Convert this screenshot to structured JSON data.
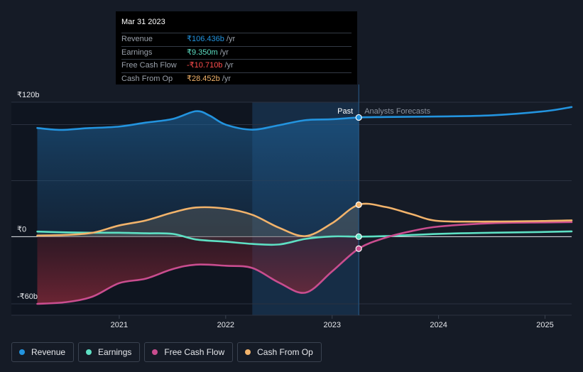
{
  "tooltip": {
    "date": "Mar 31 2023",
    "rows": [
      {
        "label": "Revenue",
        "value": "₹106.436b",
        "unit": "/yr",
        "color": "#2394df"
      },
      {
        "label": "Earnings",
        "value": "₹9.350m",
        "unit": "/yr",
        "color": "#5ee0c4"
      },
      {
        "label": "Free Cash Flow",
        "value": "-₹10.710b",
        "unit": "/yr",
        "color": "#ff4d4d"
      },
      {
        "label": "Cash From Op",
        "value": "₹28.452b",
        "unit": "/yr",
        "color": "#f2b36b"
      }
    ]
  },
  "chart_data": {
    "type": "line",
    "y_unit": "₹b",
    "ylim": [
      -60,
      120
    ],
    "y_tick_labels": [
      {
        "value": 120,
        "label": "₹120b"
      },
      {
        "value": 0,
        "label": "₹0"
      },
      {
        "value": -60,
        "label": "-₹60b"
      }
    ],
    "x_tick_labels": [
      {
        "value": 2021,
        "label": "2021"
      },
      {
        "value": 2022,
        "label": "2022"
      },
      {
        "value": 2023,
        "label": "2023"
      },
      {
        "value": 2024,
        "label": "2024"
      },
      {
        "value": 2025,
        "label": "2025"
      }
    ],
    "xlim": [
      2020.2,
      2025.25
    ],
    "past_label": "Past",
    "forecast_label": "Analysts Forecasts",
    "highlight_start": 2022.25,
    "divider_x": 2023.25,
    "series": [
      {
        "name": "Revenue",
        "color": "#2394df",
        "points": [
          [
            2020.23,
            97
          ],
          [
            2020.45,
            95.3
          ],
          [
            2020.7,
            96.8
          ],
          [
            2021.0,
            98.3
          ],
          [
            2021.25,
            101.8
          ],
          [
            2021.5,
            105
          ],
          [
            2021.72,
            112
          ],
          [
            2021.85,
            108
          ],
          [
            2022.0,
            100
          ],
          [
            2022.25,
            95.5
          ],
          [
            2022.5,
            99.5
          ],
          [
            2022.75,
            104
          ],
          [
            2023.0,
            104.8
          ],
          [
            2023.25,
            106.4
          ],
          [
            2023.5,
            106.8
          ],
          [
            2024.0,
            107.3
          ],
          [
            2024.5,
            108.3
          ],
          [
            2025.0,
            112
          ],
          [
            2025.25,
            115.7
          ]
        ]
      },
      {
        "name": "Earnings",
        "color": "#5ee0c4",
        "points": [
          [
            2020.23,
            4.5
          ],
          [
            2020.5,
            3.8
          ],
          [
            2020.75,
            3.5
          ],
          [
            2021.0,
            3.5
          ],
          [
            2021.25,
            3
          ],
          [
            2021.5,
            2.5
          ],
          [
            2021.72,
            -2.5
          ],
          [
            2022.0,
            -4.5
          ],
          [
            2022.25,
            -6.5
          ],
          [
            2022.5,
            -7
          ],
          [
            2022.75,
            -2
          ],
          [
            2023.0,
            0.2
          ],
          [
            2023.25,
            0.01
          ],
          [
            2023.5,
            0.5
          ],
          [
            2024.0,
            2.5
          ],
          [
            2024.5,
            3.5
          ],
          [
            2025.0,
            4.2
          ],
          [
            2025.25,
            4.7
          ]
        ]
      },
      {
        "name": "Free Cash Flow",
        "color": "#c94d8f",
        "points": [
          [
            2020.23,
            -60
          ],
          [
            2020.5,
            -58.5
          ],
          [
            2020.75,
            -53.5
          ],
          [
            2021.0,
            -41.5
          ],
          [
            2021.25,
            -37.5
          ],
          [
            2021.5,
            -29
          ],
          [
            2021.72,
            -25
          ],
          [
            2022.0,
            -26
          ],
          [
            2022.25,
            -28
          ],
          [
            2022.5,
            -41
          ],
          [
            2022.75,
            -50
          ],
          [
            2023.0,
            -31
          ],
          [
            2023.25,
            -10.7
          ],
          [
            2023.5,
            -1
          ],
          [
            2023.75,
            5
          ],
          [
            2024.0,
            9
          ],
          [
            2024.5,
            12
          ],
          [
            2025.0,
            12.7
          ],
          [
            2025.25,
            13
          ]
        ]
      },
      {
        "name": "Cash From Op",
        "color": "#f2b36b",
        "points": [
          [
            2020.23,
            1
          ],
          [
            2020.5,
            1.5
          ],
          [
            2020.75,
            3.5
          ],
          [
            2021.0,
            10
          ],
          [
            2021.25,
            14.5
          ],
          [
            2021.5,
            21.5
          ],
          [
            2021.72,
            26
          ],
          [
            2022.0,
            25
          ],
          [
            2022.25,
            19.5
          ],
          [
            2022.5,
            8
          ],
          [
            2022.75,
            0.5
          ],
          [
            2023.0,
            12
          ],
          [
            2023.25,
            28.5
          ],
          [
            2023.5,
            26.5
          ],
          [
            2023.75,
            20
          ],
          [
            2024.0,
            14
          ],
          [
            2024.5,
            13.5
          ],
          [
            2025.0,
            14
          ],
          [
            2025.25,
            14.5
          ]
        ]
      }
    ]
  },
  "legend": {
    "items": [
      {
        "label": "Revenue",
        "color": "#2394df"
      },
      {
        "label": "Earnings",
        "color": "#5ee0c4"
      },
      {
        "label": "Free Cash Flow",
        "color": "#c94d8f"
      },
      {
        "label": "Cash From Op",
        "color": "#f2b36b"
      }
    ]
  }
}
